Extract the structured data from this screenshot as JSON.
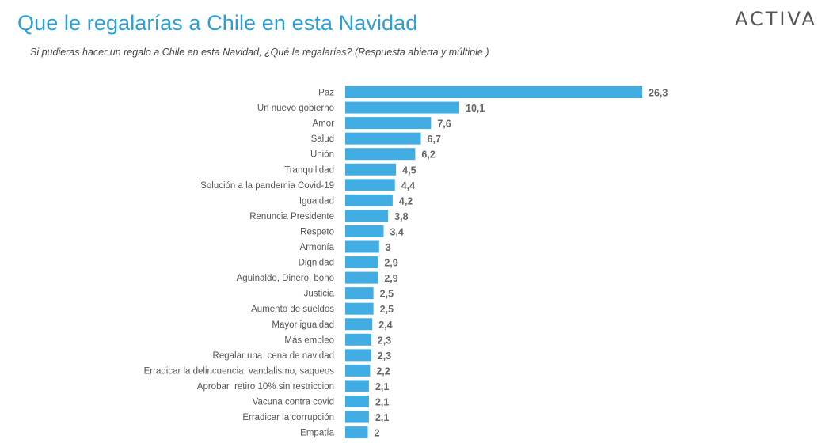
{
  "header": {
    "title": "Que le regalarías a Chile en esta Navidad",
    "logo_text": "ACTIVA",
    "subtitle": "Si pudieras hacer un regalo a Chile en esta Navidad, ¿Qué le regalarías? (Respuesta abierta y múltiple )"
  },
  "colors": {
    "title": "#2a9fd8",
    "bar": "#41ade3"
  },
  "chart_data": {
    "type": "bar",
    "orientation": "horizontal",
    "categories": [
      "Paz",
      "Un nuevo gobierno",
      "Amor",
      "Salud",
      "Unión",
      "Tranquilidad",
      "Solución a la pandemia Covid-19",
      "Igualdad",
      "Renuncia Presidente",
      "Respeto",
      "Armonía",
      "Dignidad",
      "Aguinaldo, Dinero, bono",
      "Justicia",
      "Aumento de sueldos",
      "Mayor igualdad",
      "Más empleo",
      "Regalar una  cena de navidad",
      "Erradicar la delincuencia, vandalismo, saqueos",
      "Aprobar  retiro 10% sin restriccion",
      "Vacuna contra covid",
      "Erradicar la corrupción",
      "Empatía"
    ],
    "values": [
      26.3,
      10.1,
      7.6,
      6.7,
      6.2,
      4.5,
      4.4,
      4.2,
      3.8,
      3.4,
      3,
      2.9,
      2.9,
      2.5,
      2.5,
      2.4,
      2.3,
      2.3,
      2.2,
      2.1,
      2.1,
      2.1,
      2
    ],
    "value_labels": [
      "26,3",
      "10,1",
      "7,6",
      "6,7",
      "6,2",
      "4,5",
      "4,4",
      "4,2",
      "3,8",
      "3,4",
      "3",
      "2,9",
      "2,9",
      "2,5",
      "2,5",
      "2,4",
      "2,3",
      "2,3",
      "2,2",
      "2,1",
      "2,1",
      "2,1",
      "2"
    ],
    "xlim": [
      0,
      26.3
    ],
    "grid": false,
    "legend": "none"
  }
}
